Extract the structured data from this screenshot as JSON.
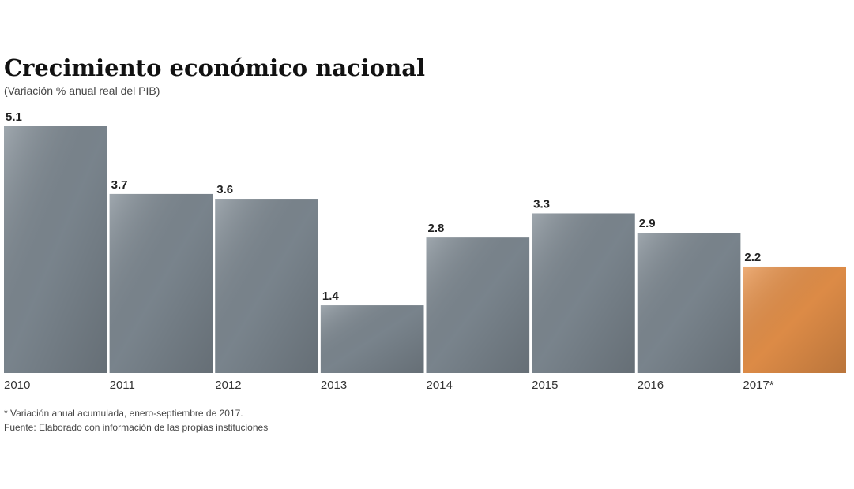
{
  "chart_data": {
    "type": "bar",
    "title": "Crecimiento económico nacional",
    "subtitle": "(Variación % anual real del PIB)",
    "categories": [
      "2010",
      "2011",
      "2012",
      "2013",
      "2014",
      "2015",
      "2016",
      "2017*"
    ],
    "values": [
      5.1,
      3.7,
      3.6,
      1.4,
      2.8,
      3.3,
      2.9,
      2.2
    ],
    "colors": [
      "#7f8a93",
      "#7f8a93",
      "#7f8a93",
      "#7f8a93",
      "#7f8a93",
      "#7f8a93",
      "#7f8a93",
      "#e8924a"
    ],
    "notes": [
      "* Variación anual acumulada, enero-septiembre de 2017.",
      "Fuente: Elaborado con información de las propias instituciones"
    ]
  }
}
